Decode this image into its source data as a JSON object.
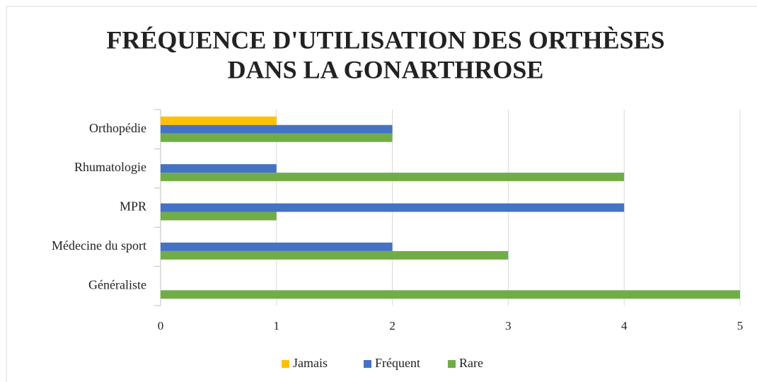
{
  "chart_data": {
    "type": "hbar",
    "title": [
      "FRÉQUENCE D'UTILISATION DES ORTHÈSES",
      "DANS LA GONARTHROSE"
    ],
    "categories": [
      "Orthopédie",
      "Rhumatologie",
      "MPR",
      "Médecine du sport",
      "Généraliste"
    ],
    "series": [
      {
        "name": "Jamais",
        "color": "#ffc000",
        "values": [
          1,
          0,
          0,
          0,
          0
        ]
      },
      {
        "name": "Fréquent",
        "color": "#4472c4",
        "values": [
          2,
          1,
          4,
          2,
          0
        ]
      },
      {
        "name": "Rare",
        "color": "#70ad47",
        "values": [
          2,
          4,
          1,
          3,
          5
        ]
      }
    ],
    "xlim": [
      0,
      5
    ],
    "xticks": [
      0,
      1,
      2,
      3,
      4,
      5
    ],
    "grid": true,
    "legend": "bottom"
  }
}
